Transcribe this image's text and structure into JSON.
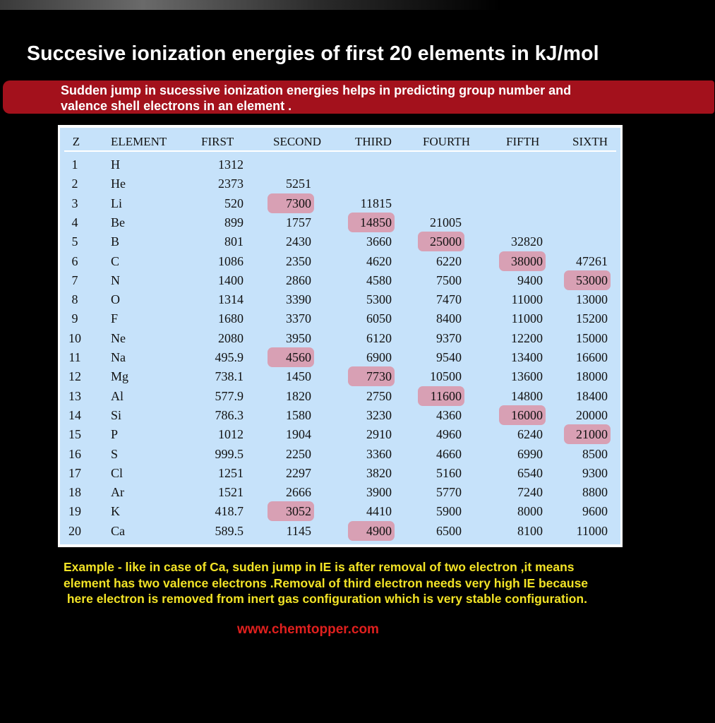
{
  "title": "Succesive ionization energies of first 20 elements in kJ/mol",
  "banner": {
    "line1": "Sudden jump in sucessive ionization energies helps in predicting group number and",
    "line2": "valence shell electrons in an element ."
  },
  "table": {
    "headers": [
      "Z",
      "ELEMENT",
      "FIRST",
      "SECOND",
      "THIRD",
      "FOURTH",
      "FIFTH",
      "SIXTH"
    ],
    "rows": [
      [
        "1",
        "H",
        "1312",
        "",
        "",
        "",
        "",
        ""
      ],
      [
        "2",
        "He",
        "2373",
        "5251",
        "",
        "",
        "",
        ""
      ],
      [
        "3",
        "Li",
        "520",
        "7300",
        "11815",
        "",
        "",
        ""
      ],
      [
        "4",
        "Be",
        "899",
        "1757",
        "14850",
        "21005",
        "",
        ""
      ],
      [
        "5",
        "B",
        "801",
        "2430",
        "3660",
        "25000",
        "32820",
        ""
      ],
      [
        "6",
        "C",
        "1086",
        "2350",
        "4620",
        "6220",
        "38000",
        "47261"
      ],
      [
        "7",
        "N",
        "1400",
        "2860",
        "4580",
        "7500",
        "9400",
        "53000"
      ],
      [
        "8",
        "O",
        "1314",
        "3390",
        "5300",
        "7470",
        "11000",
        "13000"
      ],
      [
        "9",
        "F",
        "1680",
        "3370",
        "6050",
        "8400",
        "11000",
        "15200"
      ],
      [
        "10",
        "Ne",
        "2080",
        "3950",
        "6120",
        "9370",
        "12200",
        "15000"
      ],
      [
        "11",
        "Na",
        "495.9",
        "4560",
        "6900",
        "9540",
        "13400",
        "16600"
      ],
      [
        "12",
        "Mg",
        "738.1",
        "1450",
        "7730",
        "10500",
        "13600",
        "18000"
      ],
      [
        "13",
        "Al",
        "577.9",
        "1820",
        "2750",
        "11600",
        "14800",
        "18400"
      ],
      [
        "14",
        "Si",
        "786.3",
        "1580",
        "3230",
        "4360",
        "16000",
        "20000"
      ],
      [
        "15",
        "P",
        "1012",
        "1904",
        "2910",
        "4960",
        "6240",
        "21000"
      ],
      [
        "16",
        "S",
        "999.5",
        "2250",
        "3360",
        "4660",
        "6990",
        "8500"
      ],
      [
        "17",
        "Cl",
        "1251",
        "2297",
        "3820",
        "5160",
        "6540",
        "9300"
      ],
      [
        "18",
        "Ar",
        "1521",
        "2666",
        "3900",
        "5770",
        "7240",
        "8800"
      ],
      [
        "19",
        "K",
        "418.7",
        "3052",
        "4410",
        "5900",
        "8000",
        "9600"
      ],
      [
        "20",
        "Ca",
        "589.5",
        "1145",
        "4900",
        "6500",
        "8100",
        "11000"
      ]
    ],
    "highlighted": [
      [
        3,
        3
      ],
      [
        11,
        3
      ],
      [
        19,
        3
      ],
      [
        4,
        4
      ],
      [
        12,
        4
      ],
      [
        20,
        4
      ],
      [
        5,
        5
      ],
      [
        13,
        5
      ],
      [
        6,
        6
      ],
      [
        14,
        6
      ],
      [
        7,
        7
      ],
      [
        15,
        7
      ]
    ],
    "highlight_color": "#d8a0b4",
    "background_color": "#c6e2fa"
  },
  "example": {
    "line1": "Example - like in case of Ca, suden jump in IE is after removal of two electron ,it means",
    "line2": "element has two valence electrons .Removal of third electron needs very high IE because",
    "line3": " here electron is removed from inert gas configuration which is very stable configuration."
  },
  "website": "www.chemtopper.com",
  "colors": {
    "background": "#000000",
    "banner": "#a3111c",
    "example_text": "#f2e326",
    "website_text": "#e0201e"
  }
}
